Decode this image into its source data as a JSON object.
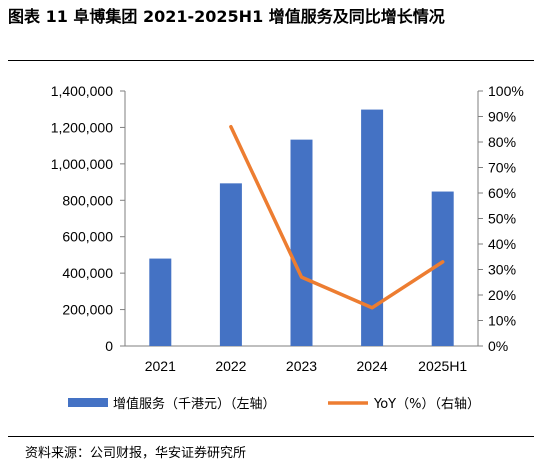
{
  "figure": {
    "title": "图表 11  阜博集团 2021-2025H1 增值服务及同比增长情况",
    "source": "资料来源：公司财报，华安证券研究所"
  },
  "chart_data": {
    "type": "bar",
    "title": "",
    "categories": [
      "2021",
      "2022",
      "2023",
      "2024",
      "2025H1"
    ],
    "series": [
      {
        "name": "增值服务（千港元）（左轴）",
        "type": "bar",
        "axis": "left",
        "color": "#4472C4",
        "values": [
          480000,
          893000,
          1133000,
          1298000,
          848000
        ]
      },
      {
        "name": "YoY（%）（右轴）",
        "type": "line",
        "axis": "right",
        "color": "#ED7D31",
        "values": [
          null,
          86,
          27,
          15,
          33
        ]
      }
    ],
    "y_left": {
      "lim": [
        0,
        1400000
      ],
      "ticks": [
        "0",
        "200,000",
        "400,000",
        "600,000",
        "800,000",
        "1,000,000",
        "1,200,000",
        "1,400,000"
      ]
    },
    "y_right": {
      "lim": [
        0,
        100
      ],
      "ticks": [
        "0%",
        "10%",
        "20%",
        "30%",
        "40%",
        "50%",
        "60%",
        "70%",
        "80%",
        "90%",
        "100%"
      ]
    },
    "grid": false,
    "legend": "bottom"
  }
}
